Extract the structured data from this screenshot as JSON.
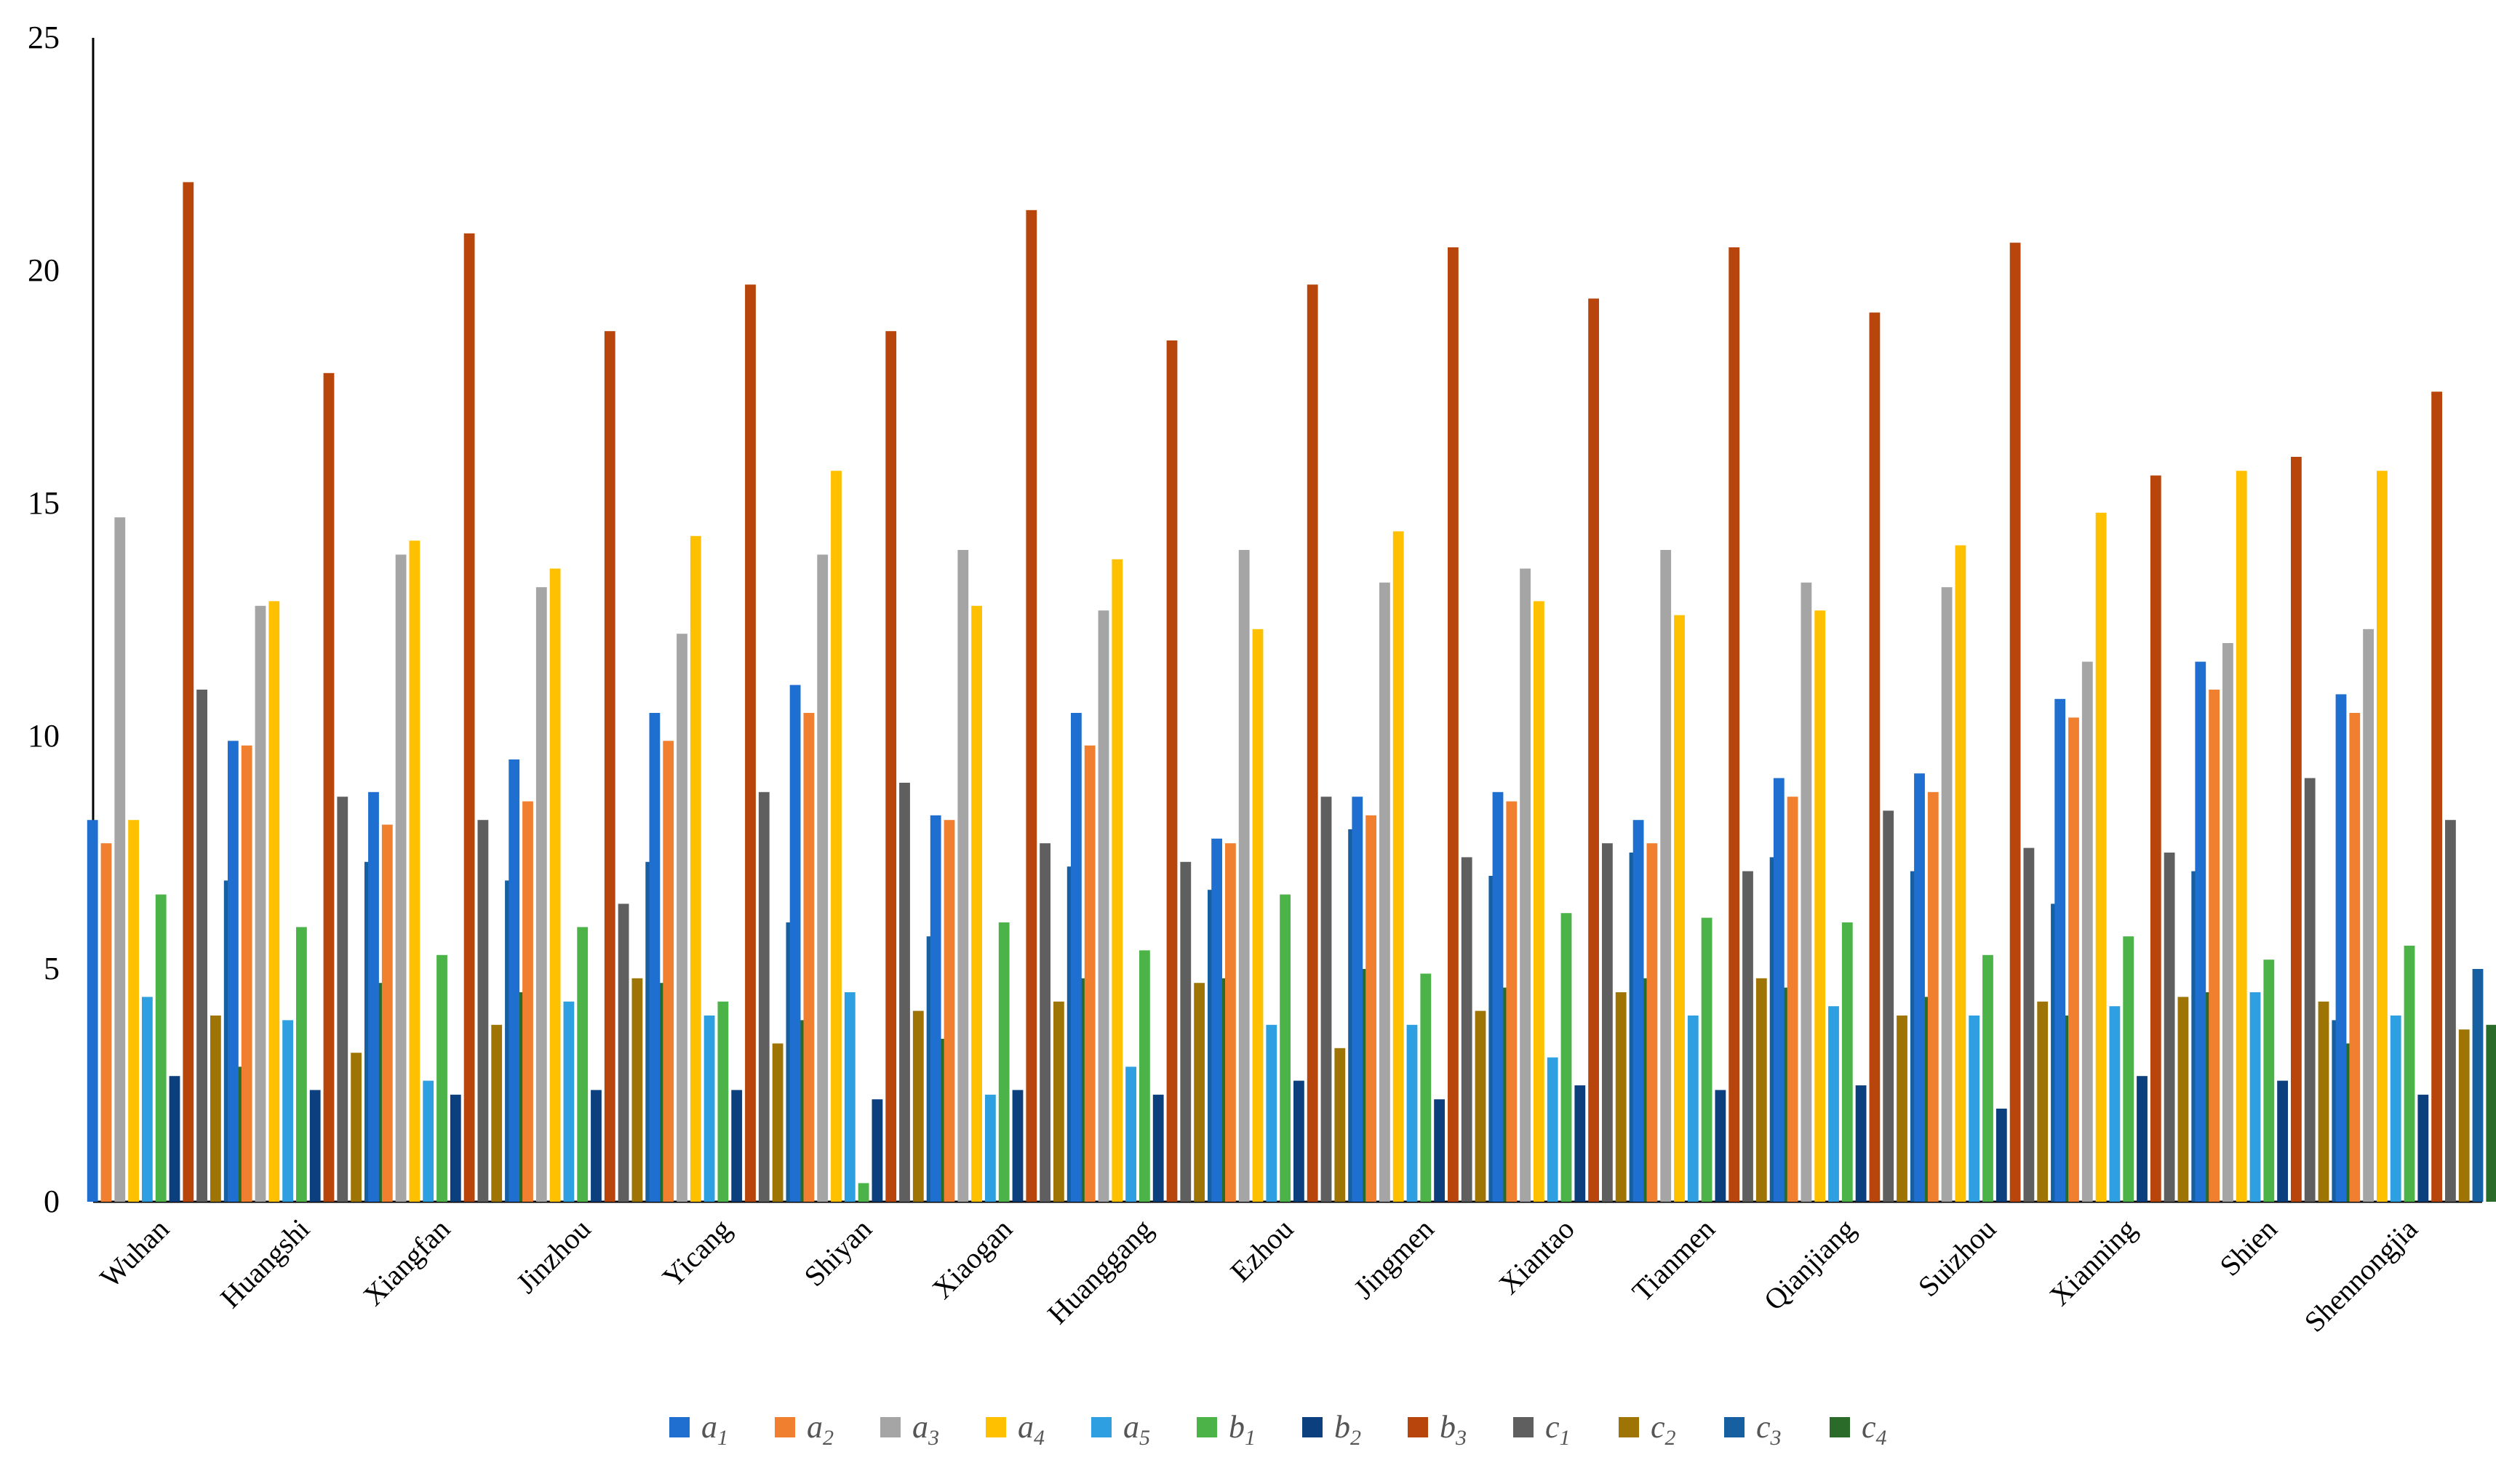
{
  "chart_data": {
    "type": "bar",
    "categories": [
      "Wuhan",
      "Huangshi",
      "Xiangfan",
      "Jinzhou",
      "Yicang",
      "Shiyan",
      "Xiaogan",
      "Huanggang",
      "Ezhou",
      "Jingmen",
      "Xiantao",
      "Tianmen",
      "Qianjiang",
      "Suizhou",
      "Xianning",
      "Shien",
      "Shennongjia"
    ],
    "ylim": [
      0,
      25
    ],
    "yticks": [
      0,
      5,
      10,
      15,
      20,
      25
    ],
    "grid": false,
    "legend_position": "bottom",
    "series": [
      {
        "name": "a1",
        "base": "a",
        "sub": "1",
        "color": "#1F6FD0",
        "values": [
          8.2,
          9.9,
          8.8,
          9.5,
          10.5,
          11.1,
          8.3,
          10.5,
          7.8,
          8.7,
          8.8,
          8.2,
          9.1,
          9.2,
          10.8,
          11.6,
          10.9
        ]
      },
      {
        "name": "a2",
        "base": "a",
        "sub": "2",
        "color": "#F07F30",
        "values": [
          7.7,
          9.8,
          8.1,
          8.6,
          9.9,
          10.5,
          8.2,
          9.8,
          7.7,
          8.3,
          8.6,
          7.7,
          8.7,
          8.8,
          10.4,
          11.0,
          10.5
        ]
      },
      {
        "name": "a3",
        "base": "a",
        "sub": "3",
        "color": "#A5A5A5",
        "values": [
          14.7,
          12.8,
          13.9,
          13.2,
          12.2,
          13.9,
          14.0,
          12.7,
          14.0,
          13.3,
          13.6,
          14.0,
          13.3,
          13.2,
          11.6,
          12.0,
          12.3
        ]
      },
      {
        "name": "a4",
        "base": "a",
        "sub": "4",
        "color": "#FFC000",
        "values": [
          8.2,
          12.9,
          14.2,
          13.6,
          14.3,
          15.7,
          12.8,
          13.8,
          12.3,
          14.4,
          12.9,
          12.6,
          12.7,
          14.1,
          14.8,
          15.7,
          15.7
        ]
      },
      {
        "name": "a5",
        "base": "a",
        "sub": "5",
        "color": "#2E9FE0",
        "values": [
          4.4,
          3.9,
          2.6,
          4.3,
          4.0,
          4.5,
          2.3,
          2.9,
          3.8,
          3.8,
          3.1,
          4.0,
          4.2,
          4.0,
          4.2,
          4.5,
          4.0
        ]
      },
      {
        "name": "b1",
        "base": "b",
        "sub": "1",
        "color": "#4CB348",
        "values": [
          6.6,
          5.9,
          5.3,
          5.9,
          4.3,
          0.4,
          6.0,
          5.4,
          6.6,
          4.9,
          6.2,
          6.1,
          6.0,
          5.3,
          5.7,
          5.2,
          5.5
        ]
      },
      {
        "name": "b2",
        "base": "b",
        "sub": "2",
        "color": "#0B3F7D",
        "values": [
          2.7,
          2.4,
          2.3,
          2.4,
          2.4,
          2.2,
          2.4,
          2.3,
          2.6,
          2.2,
          2.5,
          2.4,
          2.5,
          2.0,
          2.7,
          2.6,
          2.3
        ]
      },
      {
        "name": "b3",
        "base": "b",
        "sub": "3",
        "color": "#B8450B",
        "values": [
          21.9,
          17.8,
          20.8,
          18.7,
          19.7,
          18.7,
          21.3,
          18.5,
          19.7,
          20.5,
          19.4,
          20.5,
          19.1,
          20.6,
          15.6,
          16.0,
          17.4
        ]
      },
      {
        "name": "c1",
        "base": "c",
        "sub": "1",
        "color": "#5F5F5F",
        "values": [
          11.0,
          8.7,
          8.2,
          6.4,
          8.8,
          9.0,
          7.7,
          7.3,
          8.7,
          7.4,
          7.7,
          7.1,
          8.4,
          7.6,
          7.5,
          9.1,
          8.2
        ]
      },
      {
        "name": "c2",
        "base": "c",
        "sub": "2",
        "color": "#9E7405",
        "values": [
          4.0,
          3.2,
          3.8,
          4.8,
          3.4,
          4.1,
          4.3,
          4.7,
          3.3,
          4.1,
          4.5,
          4.8,
          4.0,
          4.3,
          4.4,
          4.3,
          3.7
        ]
      },
      {
        "name": "c3",
        "base": "c",
        "sub": "3",
        "color": "#165FA0",
        "values": [
          6.9,
          7.3,
          6.9,
          7.3,
          6.0,
          5.7,
          7.2,
          6.7,
          8.0,
          7.0,
          7.5,
          7.4,
          7.1,
          6.4,
          7.1,
          3.9,
          5.0
        ]
      },
      {
        "name": "c4",
        "base": "c",
        "sub": "4",
        "color": "#2A6B2A",
        "values": [
          2.9,
          4.7,
          4.5,
          4.7,
          3.9,
          3.5,
          4.8,
          4.8,
          5.0,
          4.6,
          4.8,
          4.6,
          4.4,
          4.0,
          4.5,
          3.4,
          3.8
        ]
      }
    ]
  }
}
